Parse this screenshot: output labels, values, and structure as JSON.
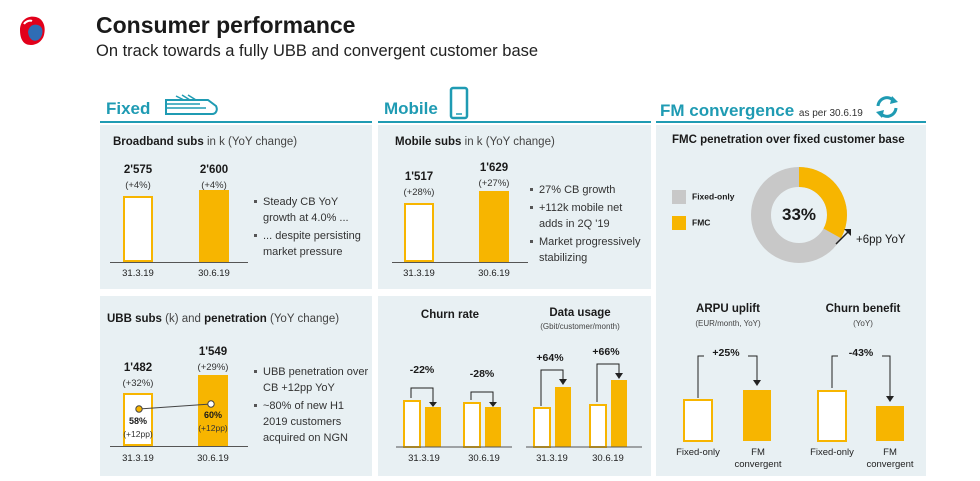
{
  "header": {
    "title": "Consumer performance",
    "subtitle": "On track towards a fully UBB and convergent customer base"
  },
  "colors": {
    "accent": "#1f9bb3",
    "bar": "#f7b500",
    "panel": "#e8f0f3",
    "fixed_only": "#c8c8c8",
    "logo_red": "#e2001a"
  },
  "icons": {
    "logo": "swisscom-logo-icon",
    "fixed": "fiber-cable-icon",
    "mobile": "smartphone-icon",
    "fmc": "refresh-arrows-icon"
  },
  "sections": {
    "fixed": {
      "label": "Fixed"
    },
    "mobile": {
      "label": "Mobile"
    },
    "fmc": {
      "label": "FM convergence",
      "note": "as per 30.6.19"
    }
  },
  "chart_data": [
    {
      "id": "broadband",
      "type": "bar",
      "title": "Broadband subs",
      "title_note": "in k (YoY change)",
      "categories": [
        "31.3.19",
        "30.6.19"
      ],
      "values": [
        2575,
        2600
      ],
      "labels": [
        "2'575",
        "2'600"
      ],
      "changes": [
        "(+4%)",
        "(+4%)"
      ],
      "ylim": [
        0,
        2600
      ],
      "bullets": [
        "Steady CB YoY growth at 4.0% ...",
        "... despite persisting market pressure"
      ]
    },
    {
      "id": "ubb",
      "type": "bar",
      "title": "UBB subs",
      "title_note1": "(k) and",
      "title_bold2": "penetration",
      "title_note2": "(YoY change)",
      "categories": [
        "31.3.19",
        "30.6.19"
      ],
      "values": [
        1482,
        1549
      ],
      "labels": [
        "1'482",
        "1'549"
      ],
      "changes": [
        "(+32%)",
        "(+29%)"
      ],
      "penetration": [
        "58%",
        "60%"
      ],
      "penetration_change": [
        "(+12pp)",
        "(+12pp)"
      ],
      "ylim": [
        0,
        1549
      ],
      "bullets": [
        "UBB penetration over CB +12pp YoY",
        "~80% of new H1 2019 customers acquired on NGN"
      ]
    },
    {
      "id": "mobile",
      "type": "bar",
      "title": "Mobile subs",
      "title_note": "in k (YoY change)",
      "categories": [
        "31.3.19",
        "30.6.19"
      ],
      "values": [
        1517,
        1629
      ],
      "labels": [
        "1'517",
        "1'629"
      ],
      "changes": [
        "(+28%)",
        "(+27%)"
      ],
      "ylim": [
        0,
        1629
      ],
      "bullets": [
        "27% CB growth",
        "+112k mobile net adds in 2Q '19",
        "Market progressively stabilizing"
      ]
    },
    {
      "id": "churn",
      "type": "bar",
      "title": "Churn rate",
      "categories": [
        "31.3.19",
        "30.6.19"
      ],
      "series": [
        {
          "values": [
            1.0,
            0.78
          ]
        },
        {
          "values": [
            1.0,
            0.72
          ]
        }
      ],
      "deltas": [
        "-22%",
        "-28%"
      ],
      "ylim": [
        0,
        1.0
      ]
    },
    {
      "id": "data_usage",
      "type": "bar",
      "title": "Data usage",
      "subtitle": "(Gbit/customer/month)",
      "categories": [
        "31.3.19",
        "30.6.19"
      ],
      "series": [
        {
          "values": [
            1.0,
            1.64
          ]
        },
        {
          "values": [
            1.0,
            1.66
          ]
        }
      ],
      "deltas": [
        "+64%",
        "+66%"
      ],
      "ylim": [
        0,
        1.66
      ]
    },
    {
      "id": "fmc_penetration",
      "type": "pie",
      "title": "FMC penetration over fixed customer base",
      "slices": [
        {
          "label": "FMC",
          "value": 33,
          "color": "#f7b500"
        },
        {
          "label": "Fixed-only",
          "value": 67,
          "color": "#c8c8c8"
        }
      ],
      "center_label": "33%",
      "annotation": "+6pp YoY"
    },
    {
      "id": "arpu_uplift",
      "type": "bar",
      "title": "ARPU uplift",
      "subtitle": "(EUR/month, YoY)",
      "categories": [
        "Fixed-only",
        "FM convergent"
      ],
      "values": [
        1.0,
        1.25
      ],
      "delta": "+25%",
      "ylim": [
        0,
        1.25
      ]
    },
    {
      "id": "churn_benefit",
      "type": "bar",
      "title": "Churn benefit",
      "subtitle": "(YoY)",
      "categories": [
        "Fixed-only",
        "FM convergent"
      ],
      "values": [
        1.0,
        0.57
      ],
      "delta": "-43%",
      "ylim": [
        0,
        1.0
      ]
    }
  ]
}
